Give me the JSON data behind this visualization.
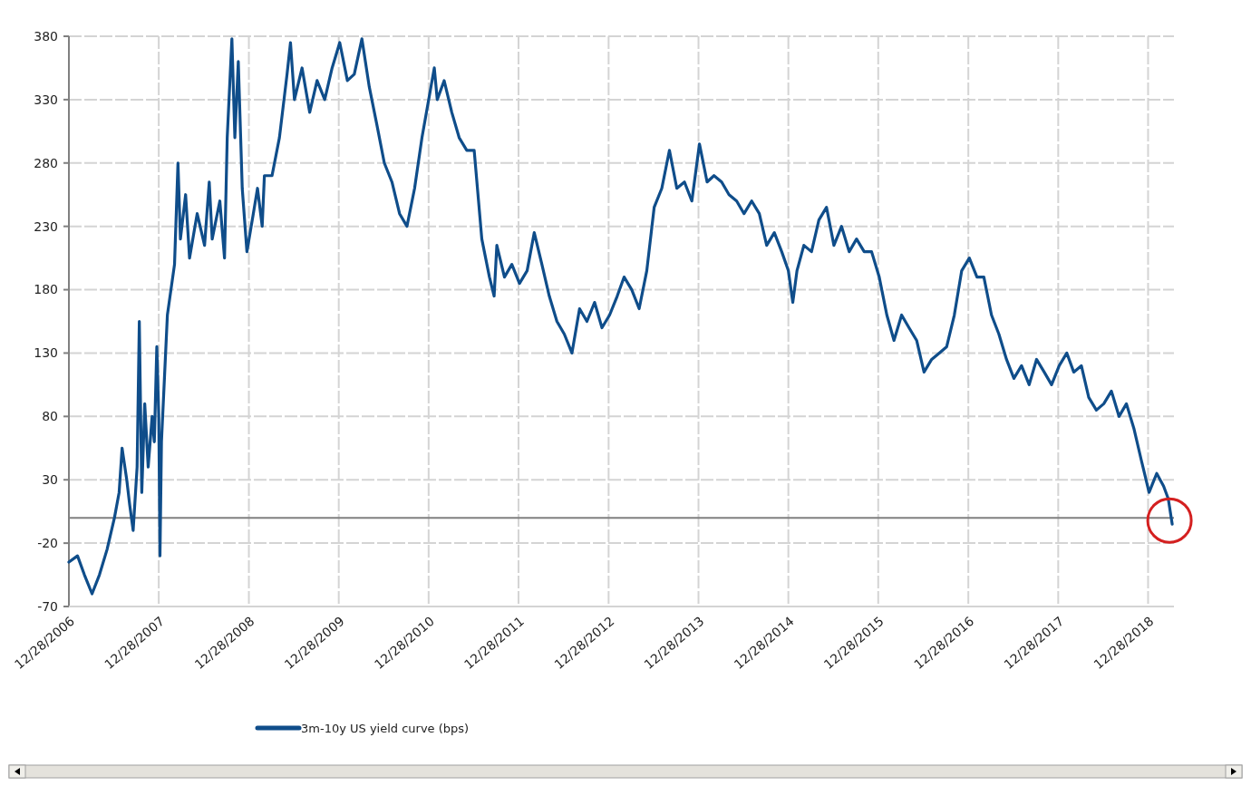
{
  "chart_data": {
    "type": "line",
    "x": [
      "2006-12-28",
      "2007-02-01",
      "2007-03-01",
      "2007-04-01",
      "2007-05-01",
      "2007-06-01",
      "2007-07-01",
      "2007-07-20",
      "2007-08-01",
      "2007-08-20",
      "2007-09-01",
      "2007-09-15",
      "2007-10-01",
      "2007-10-10",
      "2007-10-20",
      "2007-11-01",
      "2007-11-15",
      "2007-12-01",
      "2007-12-10",
      "2007-12-20",
      "2007-12-28",
      "2008-01-02",
      "2008-01-08",
      "2008-01-20",
      "2008-02-01",
      "2008-03-01",
      "2008-03-15",
      "2008-03-25",
      "2008-04-15",
      "2008-05-01",
      "2008-06-01",
      "2008-07-01",
      "2008-07-20",
      "2008-08-01",
      "2008-09-01",
      "2008-09-20",
      "2008-10-01",
      "2008-10-20",
      "2008-11-01",
      "2008-11-15",
      "2008-12-01",
      "2008-12-20",
      "2009-01-15",
      "2009-02-01",
      "2009-02-20",
      "2009-03-01",
      "2009-04-01",
      "2009-05-01",
      "2009-06-01",
      "2009-06-15",
      "2009-07-01",
      "2009-08-01",
      "2009-09-01",
      "2009-10-01",
      "2009-11-01",
      "2009-12-01",
      "2010-01-01",
      "2010-02-01",
      "2010-03-01",
      "2010-04-01",
      "2010-05-01",
      "2010-06-01",
      "2010-07-01",
      "2010-08-01",
      "2010-09-01",
      "2010-10-01",
      "2010-11-01",
      "2010-12-01",
      "2011-01-20",
      "2011-02-01",
      "2011-03-01",
      "2011-04-01",
      "2011-05-01",
      "2011-06-01",
      "2011-07-01",
      "2011-08-01",
      "2011-09-01",
      "2011-09-20",
      "2011-10-01",
      "2011-11-01",
      "2011-12-01",
      "2012-01-01",
      "2012-02-01",
      "2012-03-01",
      "2012-04-01",
      "2012-05-01",
      "2012-06-01",
      "2012-07-01",
      "2012-08-01",
      "2012-09-01",
      "2012-10-01",
      "2012-11-01",
      "2012-12-01",
      "2013-01-01",
      "2013-02-01",
      "2013-03-01",
      "2013-04-01",
      "2013-05-01",
      "2013-06-01",
      "2013-07-01",
      "2013-08-01",
      "2013-09-01",
      "2013-10-01",
      "2013-11-01",
      "2013-12-01",
      "2014-01-01",
      "2014-02-01",
      "2014-03-01",
      "2014-04-01",
      "2014-05-01",
      "2014-06-01",
      "2014-07-01",
      "2014-08-01",
      "2014-09-01",
      "2014-10-01",
      "2014-11-01",
      "2014-12-01",
      "2014-12-28",
      "2015-01-15",
      "2015-02-01",
      "2015-03-01",
      "2015-04-01",
      "2015-05-01",
      "2015-06-01",
      "2015-07-01",
      "2015-08-01",
      "2015-09-01",
      "2015-10-01",
      "2015-11-01",
      "2015-12-01",
      "2016-01-01",
      "2016-02-01",
      "2016-03-01",
      "2016-04-01",
      "2016-05-01",
      "2016-06-01",
      "2016-07-01",
      "2016-08-01",
      "2016-09-01",
      "2016-10-01",
      "2016-11-01",
      "2016-12-01",
      "2017-01-01",
      "2017-02-01",
      "2017-03-01",
      "2017-04-01",
      "2017-05-01",
      "2017-06-01",
      "2017-07-01",
      "2017-08-01",
      "2017-09-01",
      "2017-10-01",
      "2017-11-01",
      "2017-12-01",
      "2018-01-01",
      "2018-02-01",
      "2018-03-01",
      "2018-04-01",
      "2018-05-01",
      "2018-06-01",
      "2018-07-01",
      "2018-08-01",
      "2018-09-01",
      "2018-10-01",
      "2018-11-01",
      "2018-12-01",
      "2019-01-01",
      "2019-02-01",
      "2019-03-01",
      "2019-03-20",
      "2019-04-05"
    ],
    "series": [
      {
        "name": "3m-10y US yield curve (bps)",
        "color": "#0f4d8a",
        "values": [
          -35,
          -30,
          -45,
          -60,
          -45,
          -25,
          0,
          20,
          55,
          30,
          10,
          -10,
          40,
          155,
          20,
          90,
          40,
          80,
          60,
          135,
          80,
          -30,
          60,
          110,
          160,
          200,
          280,
          220,
          255,
          205,
          240,
          215,
          265,
          220,
          250,
          205,
          300,
          378,
          300,
          360,
          260,
          210,
          240,
          260,
          230,
          270,
          270,
          300,
          350,
          375,
          330,
          355,
          320,
          345,
          330,
          355,
          375,
          345,
          350,
          378,
          340,
          310,
          280,
          265,
          240,
          230,
          260,
          300,
          355,
          330,
          345,
          320,
          300,
          290,
          290,
          220,
          190,
          175,
          215,
          190,
          200,
          185,
          195,
          225,
          200,
          175,
          155,
          145,
          130,
          165,
          155,
          170,
          150,
          160,
          175,
          190,
          180,
          165,
          195,
          245,
          260,
          290,
          260,
          265,
          250,
          295,
          265,
          270,
          265,
          255,
          250,
          240,
          250,
          240,
          215,
          225,
          210,
          195,
          170,
          195,
          215,
          210,
          235,
          245,
          215,
          230,
          210,
          220,
          210,
          210,
          190,
          160,
          140,
          160,
          150,
          140,
          115,
          125,
          130,
          135,
          160,
          195,
          205,
          190,
          190,
          160,
          145,
          125,
          110,
          120,
          105,
          125,
          115,
          105,
          120,
          130,
          115,
          120,
          95,
          85,
          90,
          100,
          80,
          90,
          70,
          45,
          20,
          35,
          25,
          15,
          -5
        ]
      }
    ],
    "xlim": [
      "2006-12-28",
      "2019-04-12"
    ],
    "xticks": [
      {
        "value": "2006-12-28",
        "label": "12/28/2006"
      },
      {
        "value": "2007-12-28",
        "label": "12/28/2007"
      },
      {
        "value": "2008-12-28",
        "label": "12/28/2008"
      },
      {
        "value": "2009-12-28",
        "label": "12/28/2009"
      },
      {
        "value": "2010-12-28",
        "label": "12/28/2010"
      },
      {
        "value": "2011-12-28",
        "label": "12/28/2011"
      },
      {
        "value": "2012-12-28",
        "label": "12/28/2012"
      },
      {
        "value": "2013-12-28",
        "label": "12/28/2013"
      },
      {
        "value": "2014-12-28",
        "label": "12/28/2014"
      },
      {
        "value": "2015-12-28",
        "label": "12/28/2015"
      },
      {
        "value": "2016-12-28",
        "label": "12/28/2016"
      },
      {
        "value": "2017-12-28",
        "label": "12/28/2017"
      },
      {
        "value": "2018-12-28",
        "label": "12/28/2018"
      }
    ],
    "ylim": [
      -70,
      380
    ],
    "yticks": [
      -70,
      -20,
      30,
      80,
      130,
      180,
      230,
      280,
      330,
      380
    ],
    "ref_lines": [
      {
        "axis": "y",
        "value": 0,
        "color": "#808080"
      }
    ],
    "grid": true,
    "legend": "bottom",
    "line_style": "solid",
    "marker": "none"
  }
}
